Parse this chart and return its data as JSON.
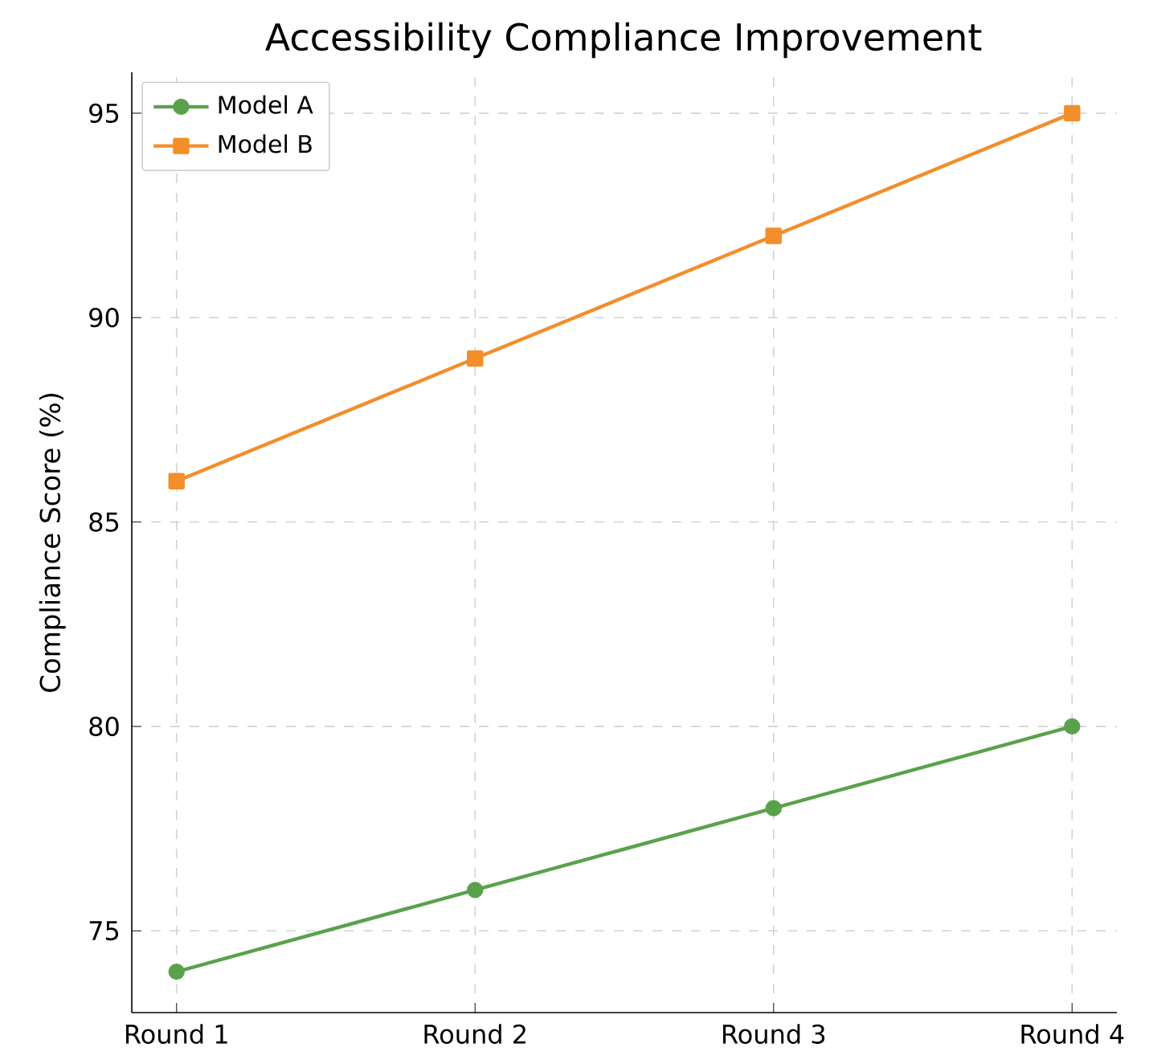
{
  "chart_data": {
    "type": "line",
    "title": "Accessibility Compliance Improvement",
    "ylabel": "Compliance Score (%)",
    "categories": [
      "Round 1",
      "Round 2",
      "Round 3",
      "Round 4"
    ],
    "series": [
      {
        "name": "Model A",
        "color": "#5aa14c",
        "values": [
          74,
          76,
          78,
          80
        ],
        "marker": "circle"
      },
      {
        "name": "Model B",
        "color": "#f28e2b",
        "values": [
          86,
          89,
          92,
          95
        ],
        "marker": "square"
      }
    ],
    "ylim": [
      73,
      96
    ],
    "yticks": [
      75,
      80,
      85,
      90,
      95
    ],
    "grid": true,
    "legend": "top left",
    "line_style": "solid"
  }
}
